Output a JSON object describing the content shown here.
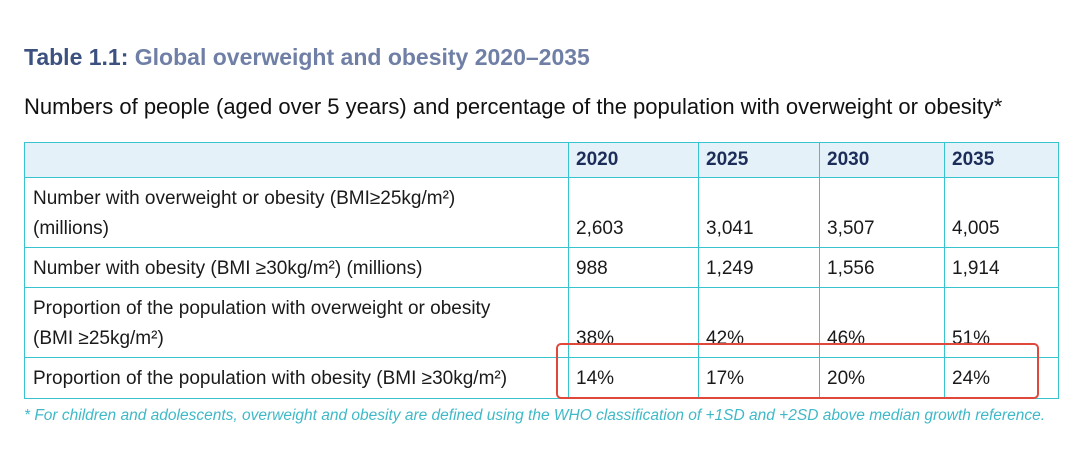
{
  "title": {
    "label": "Table 1.1:",
    "text": "Global overweight and obesity 2020–2035"
  },
  "subtitle": "Numbers of people (aged over 5 years) and percentage of the population with overweight or obesity*",
  "table": {
    "columns": [
      "2020",
      "2025",
      "2030",
      "2035"
    ],
    "rows": [
      {
        "label_line1": "Number with overweight or obesity (BMI≥25kg/m²)",
        "label_line2": "(millions)",
        "values": [
          "2,603",
          "3,041",
          "3,507",
          "4,005"
        ]
      },
      {
        "label_line1": "Number with obesity (BMI ≥30kg/m²) (millions)",
        "label_line2": "",
        "values": [
          "988",
          "1,249",
          "1,556",
          "1,914"
        ]
      },
      {
        "label_line1": "Proportion of the population with overweight or obesity",
        "label_line2": "(BMI ≥25kg/m²)",
        "values": [
          "38%",
          "42%",
          "46%",
          "51%"
        ]
      },
      {
        "label_line1": "Proportion of the population with obesity (BMI ≥30kg/m²)",
        "label_line2": "",
        "values": [
          "14%",
          "17%",
          "20%",
          "24%"
        ],
        "highlighted": true
      }
    ]
  },
  "footnote": "* For children and adolescents, overweight and obesity are defined using the WHO classification of +1SD and +2SD above median growth reference.",
  "colors": {
    "table_border": "#38c4cf",
    "header_bg": "#e4f1f8",
    "highlight_box": "#e0483c",
    "footnote": "#3fb9c7",
    "title": "#3d5180"
  }
}
